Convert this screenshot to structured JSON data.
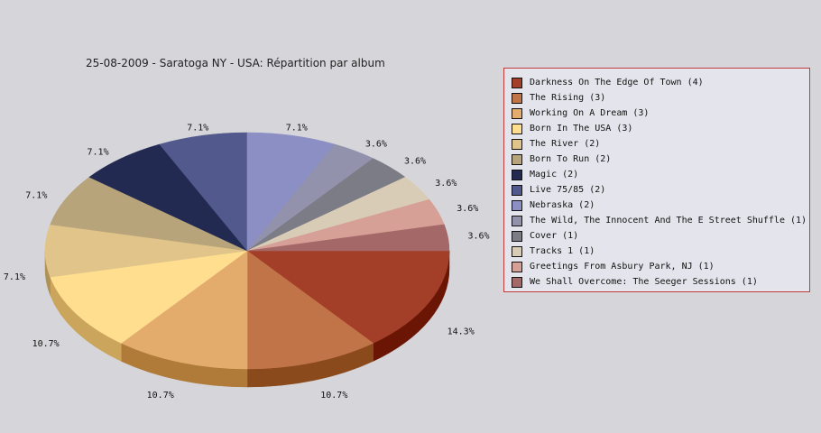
{
  "chart_data": {
    "type": "pie",
    "title": "25-08-2009 - Saratoga NY - USA:  Répartition par album",
    "legend_position": "right",
    "slices": [
      {
        "label": "Darkness On The Edge Of Town (4)",
        "value": 4,
        "pct_label": "14.3%",
        "color": "#a33f28",
        "side": "#6b1505"
      },
      {
        "label": "The Rising (3)",
        "value": 3,
        "pct_label": "10.7%",
        "color": "#c27449",
        "side": "#8b4a1c"
      },
      {
        "label": "Working On A Dream (3)",
        "value": 3,
        "pct_label": "10.7%",
        "color": "#e3ac6d",
        "side": "#b07a38"
      },
      {
        "label": "Born In The USA (3)",
        "value": 3,
        "pct_label": "10.7%",
        "color": "#ffdf8f",
        "side": "#caa55b"
      },
      {
        "label": "The River (2)",
        "value": 2,
        "pct_label": "7.1%",
        "color": "#e0c48a",
        "side": "#ae9257"
      },
      {
        "label": "Born To Run (2)",
        "value": 2,
        "pct_label": "7.1%",
        "color": "#b8a47a",
        "side": "#857247"
      },
      {
        "label": "Magic (2)",
        "value": 2,
        "pct_label": "7.1%",
        "color": "#222a52",
        "side": "#111630"
      },
      {
        "label": "Live 75/85 (2)",
        "value": 2,
        "pct_label": "7.1%",
        "color": "#52598c",
        "side": "#2f3560"
      },
      {
        "label": "Nebraska (2)",
        "value": 2,
        "pct_label": "7.1%",
        "color": "#8b8fc4",
        "side": "#5d6190"
      },
      {
        "label": "The Wild, The Innocent And The E Street Shuffle (1)",
        "value": 1,
        "pct_label": "3.6%",
        "color": "#9292ad",
        "side": "#64647c"
      },
      {
        "label": "Cover (1)",
        "value": 1,
        "pct_label": "3.6%",
        "color": "#7c7c86",
        "side": "#52525a"
      },
      {
        "label": "Tracks 1 (1)",
        "value": 1,
        "pct_label": "3.6%",
        "color": "#d8ccb6",
        "side": "#a89c86"
      },
      {
        "label": "Greetings From Asbury Park, NJ (1)",
        "value": 1,
        "pct_label": "3.6%",
        "color": "#d6a096",
        "side": "#a67068"
      },
      {
        "label": "We Shall Overcome: The Seeger Sessions (1)",
        "value": 1,
        "pct_label": "3.6%",
        "color": "#a56868",
        "side": "#743c3c"
      }
    ]
  }
}
